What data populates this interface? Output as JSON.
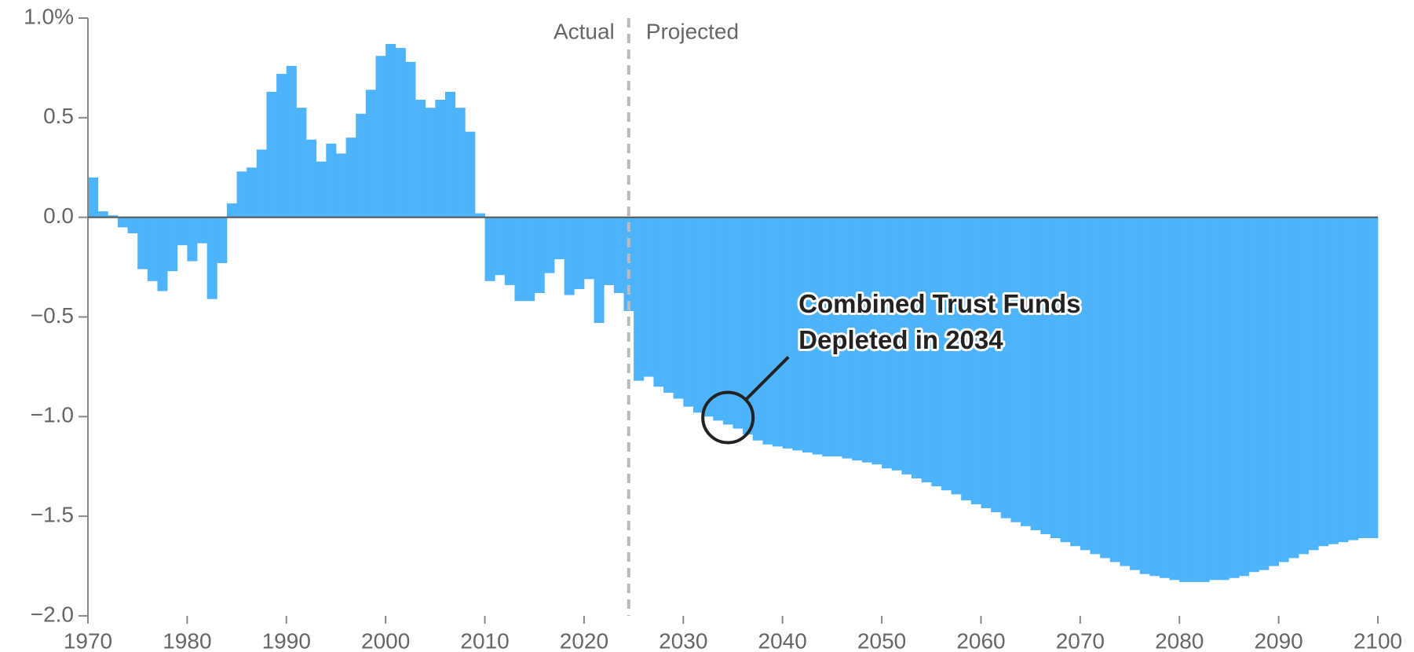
{
  "chart_data": {
    "type": "bar",
    "x": [
      1970,
      1971,
      1972,
      1973,
      1974,
      1975,
      1976,
      1977,
      1978,
      1979,
      1980,
      1981,
      1982,
      1983,
      1984,
      1985,
      1986,
      1987,
      1988,
      1989,
      1990,
      1991,
      1992,
      1993,
      1994,
      1995,
      1996,
      1997,
      1998,
      1999,
      2000,
      2001,
      2002,
      2003,
      2004,
      2005,
      2006,
      2007,
      2008,
      2009,
      2010,
      2011,
      2012,
      2013,
      2014,
      2015,
      2016,
      2017,
      2018,
      2019,
      2020,
      2021,
      2022,
      2023,
      2024,
      2025,
      2026,
      2027,
      2028,
      2029,
      2030,
      2031,
      2032,
      2033,
      2034,
      2035,
      2036,
      2037,
      2038,
      2039,
      2040,
      2041,
      2042,
      2043,
      2044,
      2045,
      2046,
      2047,
      2048,
      2049,
      2050,
      2051,
      2052,
      2053,
      2054,
      2055,
      2056,
      2057,
      2058,
      2059,
      2060,
      2061,
      2062,
      2063,
      2064,
      2065,
      2066,
      2067,
      2068,
      2069,
      2070,
      2071,
      2072,
      2073,
      2074,
      2075,
      2076,
      2077,
      2078,
      2079,
      2080,
      2081,
      2082,
      2083,
      2084,
      2085,
      2086,
      2087,
      2088,
      2089,
      2090,
      2091,
      2092,
      2093,
      2094,
      2095,
      2096,
      2097,
      2098,
      2099
    ],
    "values": [
      0.2,
      0.03,
      0.01,
      -0.05,
      -0.08,
      -0.26,
      -0.32,
      -0.37,
      -0.27,
      -0.14,
      -0.22,
      -0.13,
      -0.41,
      -0.23,
      0.07,
      0.23,
      0.25,
      0.34,
      0.63,
      0.72,
      0.76,
      0.55,
      0.39,
      0.28,
      0.37,
      0.32,
      0.4,
      0.52,
      0.64,
      0.81,
      0.87,
      0.85,
      0.78,
      0.59,
      0.55,
      0.59,
      0.63,
      0.55,
      0.43,
      0.02,
      -0.32,
      -0.29,
      -0.34,
      -0.42,
      -0.42,
      -0.38,
      -0.28,
      -0.21,
      -0.39,
      -0.36,
      -0.31,
      -0.53,
      -0.34,
      -0.38,
      -0.47,
      -0.82,
      -0.8,
      -0.85,
      -0.88,
      -0.91,
      -0.95,
      -0.98,
      -1.0,
      -1.02,
      -1.04,
      -1.06,
      -1.09,
      -1.12,
      -1.14,
      -1.15,
      -1.16,
      -1.17,
      -1.18,
      -1.19,
      -1.2,
      -1.2,
      -1.21,
      -1.22,
      -1.23,
      -1.24,
      -1.26,
      -1.27,
      -1.29,
      -1.31,
      -1.33,
      -1.35,
      -1.37,
      -1.39,
      -1.42,
      -1.44,
      -1.46,
      -1.48,
      -1.51,
      -1.53,
      -1.55,
      -1.57,
      -1.59,
      -1.61,
      -1.63,
      -1.65,
      -1.67,
      -1.69,
      -1.71,
      -1.73,
      -1.75,
      -1.77,
      -1.79,
      -1.8,
      -1.81,
      -1.82,
      -1.83,
      -1.83,
      -1.83,
      -1.82,
      -1.82,
      -1.81,
      -1.8,
      -1.78,
      -1.77,
      -1.75,
      -1.73,
      -1.71,
      -1.69,
      -1.67,
      -1.65,
      -1.64,
      -1.63,
      -1.62,
      -1.61,
      -1.61
    ],
    "color": "#4db3fb",
    "xlim": [
      1970,
      2100
    ],
    "xticks": [
      1970,
      1980,
      1990,
      2000,
      2010,
      2020,
      2030,
      2040,
      2050,
      2060,
      2070,
      2080,
      2090,
      2100
    ],
    "ylim": [
      -2,
      1
    ],
    "yticks": [
      {
        "value": 1,
        "label": "1.0%"
      },
      0.5,
      {
        "value": 0,
        "label": "0.0"
      },
      {
        "value": -0.5,
        "label": "−0.5"
      },
      {
        "value": -1,
        "label": "−1.0"
      },
      {
        "value": -1.5,
        "label": "−1.5"
      },
      {
        "value": -2,
        "label": "−2.0"
      }
    ],
    "divider": {
      "x": 2024.5,
      "left_label": "Actual",
      "right_label": "Projected"
    },
    "callout": {
      "x": 2034,
      "lines": [
        "Combined Trust Funds",
        "Depleted in 2034"
      ]
    }
  }
}
